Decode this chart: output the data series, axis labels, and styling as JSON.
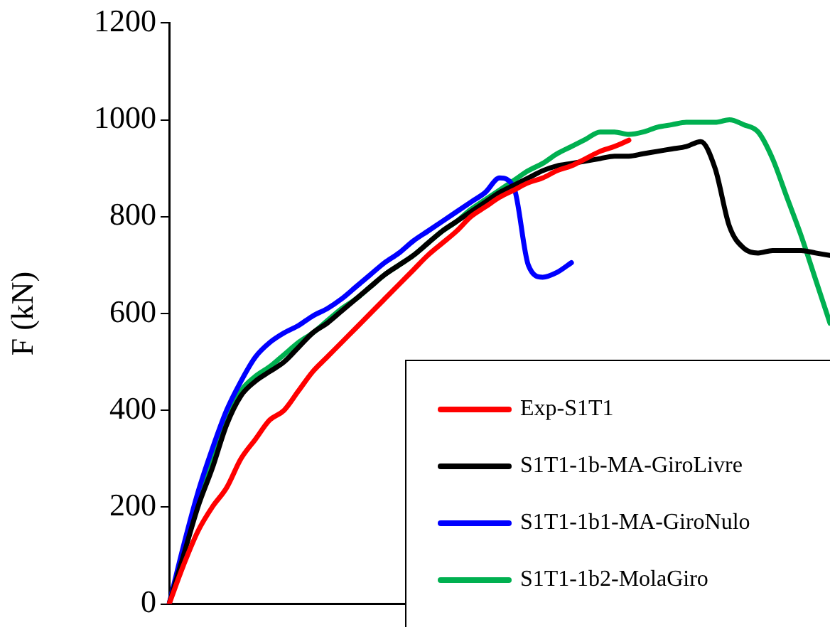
{
  "chart_data": {
    "type": "line",
    "ylabel": "F (kN)",
    "ylim": [
      0,
      1200
    ],
    "yticks": [
      0,
      200,
      400,
      600,
      800,
      1000,
      1200
    ],
    "grid": false,
    "legend": "bottom right",
    "marker": "none",
    "tick_labels": "y",
    "categories": [
      null,
      null,
      null,
      null,
      null,
      null,
      null,
      null,
      null,
      null,
      null,
      null,
      null,
      null,
      null,
      null,
      null,
      null,
      null,
      null,
      null,
      null,
      null,
      null,
      null,
      null,
      null,
      null,
      null,
      null,
      null,
      null,
      null,
      null,
      null,
      null,
      null,
      null,
      null,
      null,
      null,
      null,
      null,
      null,
      null,
      null,
      null
    ],
    "series": [
      {
        "name": "Exp-S1T1",
        "color": "#ff0000",
        "values": [
          0,
          80,
          150,
          200,
          240,
          300,
          340,
          380,
          400,
          440,
          480,
          510,
          540,
          570,
          600,
          630,
          660,
          690,
          720,
          745,
          770,
          800,
          820,
          840,
          855,
          870,
          880,
          895,
          905,
          920,
          935,
          945,
          958,
          null,
          null,
          null,
          null,
          null,
          null,
          null,
          null,
          null,
          null,
          null,
          null,
          null,
          null
        ]
      },
      {
        "name": "S1T1-1b-MA-GiroLivre",
        "color": "#000000",
        "values": [
          0,
          100,
          200,
          280,
          370,
          430,
          460,
          480,
          500,
          530,
          560,
          580,
          605,
          630,
          655,
          680,
          700,
          720,
          745,
          770,
          790,
          810,
          830,
          850,
          865,
          880,
          895,
          905,
          910,
          915,
          920,
          925,
          925,
          930,
          935,
          940,
          945,
          955,
          900,
          780,
          735,
          725,
          730,
          730,
          730,
          725,
          720
        ]
      },
      {
        "name": "S1T1-1b1-MA-GiroNulo",
        "color": "#0000ff",
        "values": [
          0,
          120,
          230,
          320,
          400,
          460,
          510,
          540,
          560,
          575,
          595,
          610,
          630,
          655,
          680,
          705,
          725,
          750,
          770,
          790,
          810,
          830,
          850,
          880,
          860,
          700,
          675,
          685,
          705,
          null,
          null,
          null,
          null,
          null,
          null,
          null,
          null,
          null,
          null,
          null,
          null,
          null,
          null,
          null,
          null,
          null,
          null
        ]
      },
      {
        "name": "S1T1-1b2-MolaGiro",
        "color": "#00b050",
        "values": [
          null,
          null,
          210,
          300,
          380,
          440,
          470,
          490,
          515,
          540,
          560,
          585,
          610,
          630,
          655,
          680,
          700,
          720,
          745,
          770,
          790,
          815,
          835,
          855,
          875,
          895,
          910,
          930,
          945,
          960,
          975,
          975,
          970,
          975,
          985,
          990,
          995,
          995,
          995,
          1000,
          990,
          975,
          920,
          840,
          760,
          670,
          580
        ]
      }
    ]
  }
}
